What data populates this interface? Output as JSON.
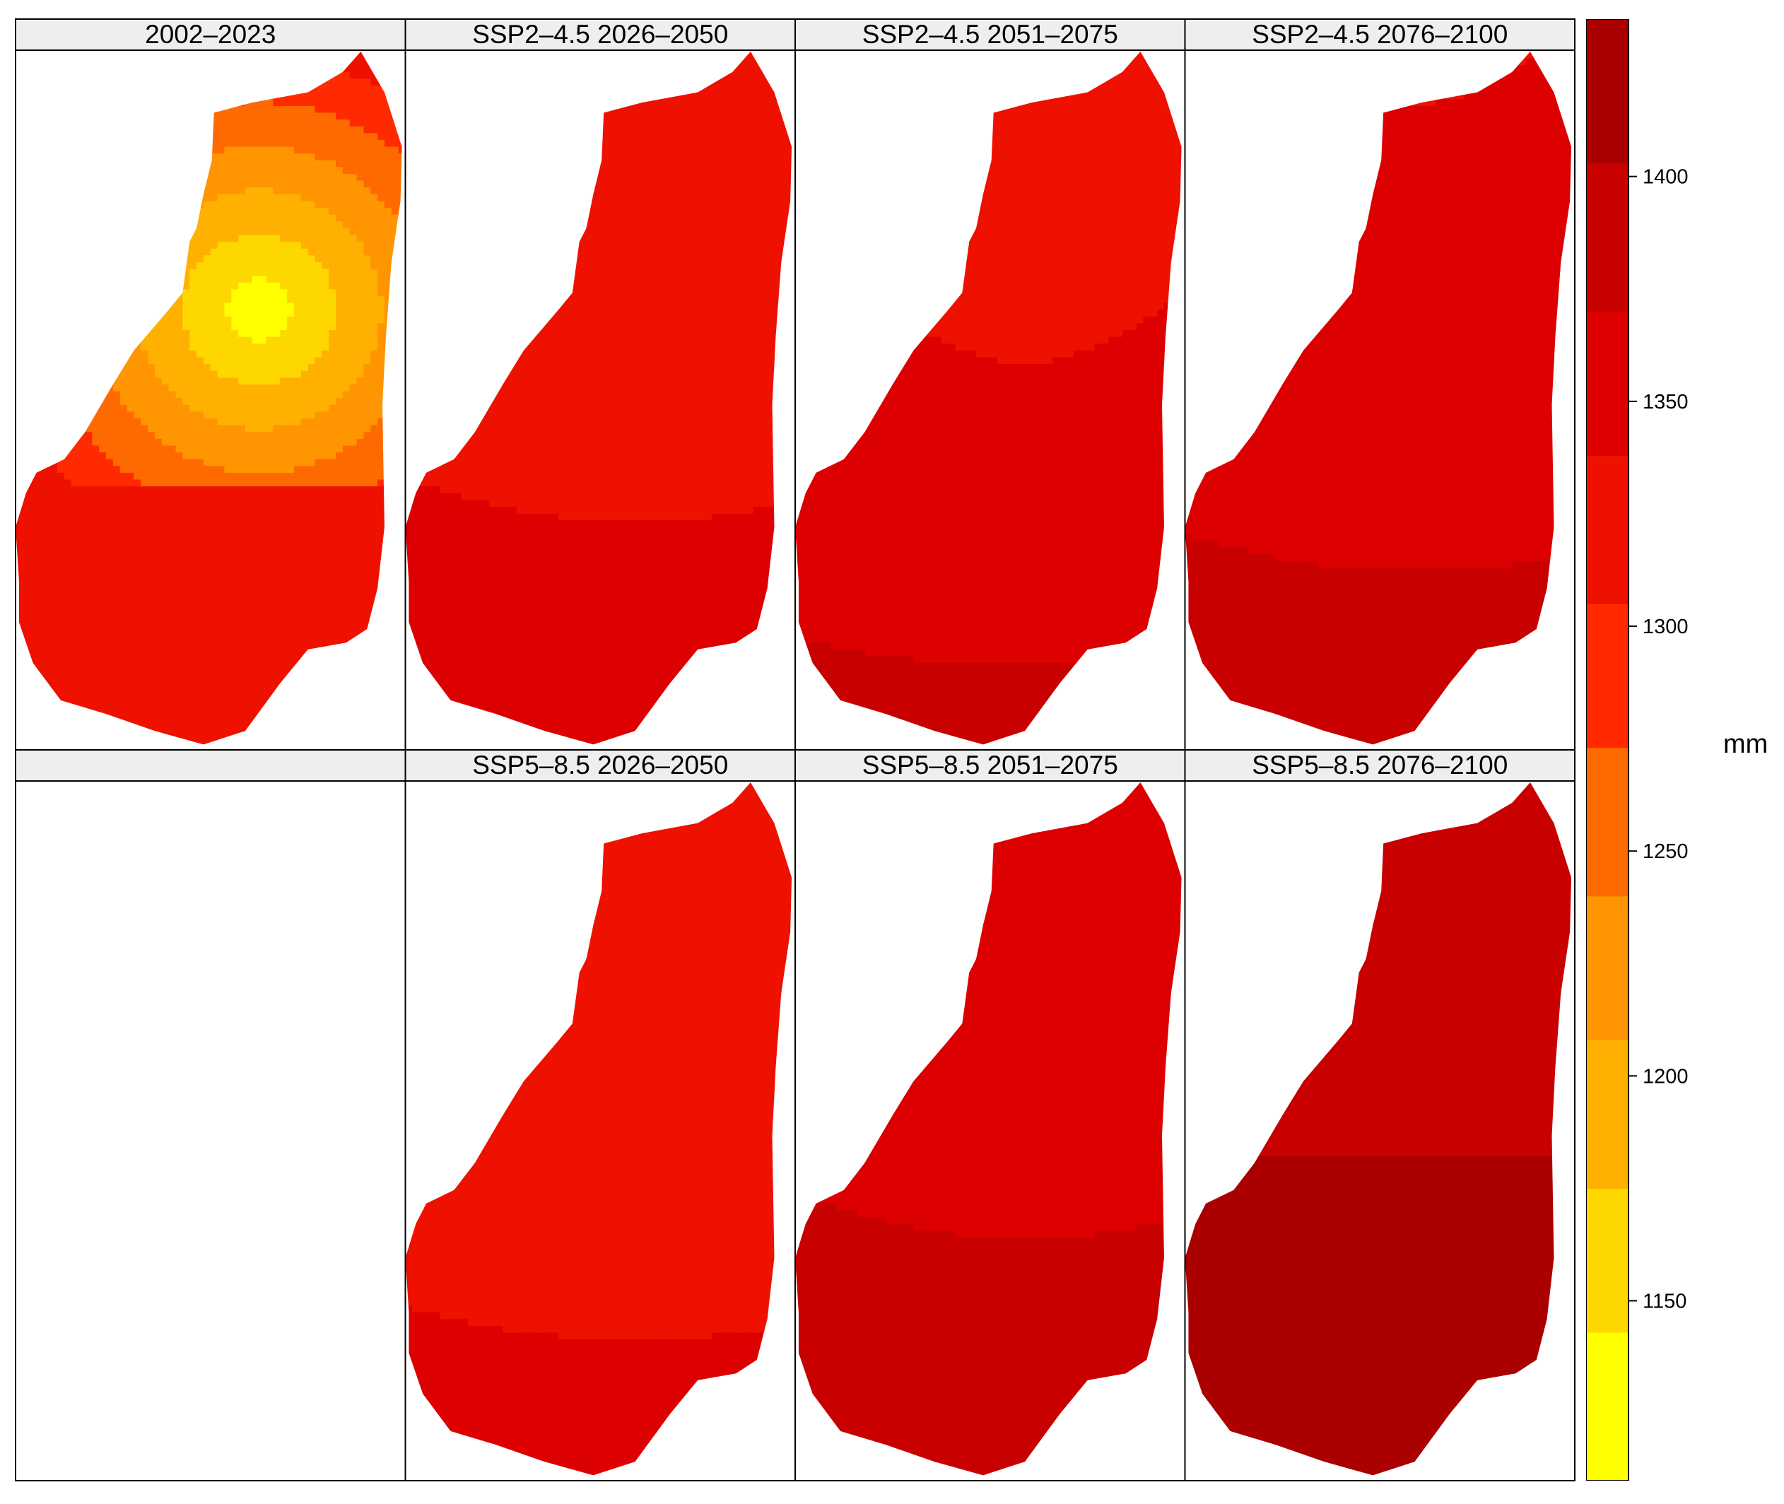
{
  "chart_data": {
    "type": "heatmap",
    "description_layout": "2 rows x 4 columns of small-multiple maps sharing one colour scale",
    "panels": [
      {
        "title": "2002–2023",
        "row": 0,
        "col": 0,
        "range": [
          1120,
          1330
        ],
        "pattern": "baseline"
      },
      {
        "title": "SSP2–4.5 2026–2050",
        "row": 0,
        "col": 1,
        "range": [
          1290,
          1360
        ],
        "pattern": "mid"
      },
      {
        "title": "SSP2–4.5 2051–2075",
        "row": 0,
        "col": 2,
        "range": [
          1300,
          1380
        ],
        "pattern": "mid"
      },
      {
        "title": "SSP2–4.5 2076–2100",
        "row": 0,
        "col": 3,
        "range": [
          1310,
          1390
        ],
        "pattern": "mid"
      },
      {
        "title": "",
        "row": 1,
        "col": 0,
        "range": null,
        "pattern": "empty"
      },
      {
        "title": "SSP5–8.5 2026–2050",
        "row": 1,
        "col": 1,
        "range": [
          1290,
          1350
        ],
        "pattern": "mid"
      },
      {
        "title": "SSP5–8.5 2051–2075",
        "row": 1,
        "col": 2,
        "range": [
          1310,
          1400
        ],
        "pattern": "mid"
      },
      {
        "title": "SSP5–8.5 2076–2100",
        "row": 1,
        "col": 3,
        "range": [
          1340,
          1430
        ],
        "pattern": "late"
      }
    ],
    "colorbar": {
      "label": "mm",
      "range": [
        1110,
        1435
      ],
      "ticks": [
        1150,
        1200,
        1250,
        1300,
        1350,
        1400
      ],
      "tick_labels": [
        "1150",
        "1200",
        "1250",
        "1300",
        "1350",
        "1400"
      ],
      "bins": [
        1110,
        1143,
        1175,
        1208,
        1240,
        1273,
        1305,
        1338,
        1370,
        1403,
        1435
      ],
      "colors": [
        "#ffff00",
        "#ffd700",
        "#ffb000",
        "#ff9500",
        "#ff6a00",
        "#ff2a00",
        "#ee1100",
        "#dd0000",
        "#c80000",
        "#aa0000",
        "#880000"
      ]
    }
  }
}
